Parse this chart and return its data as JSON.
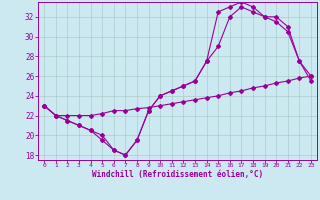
{
  "xlabel": "Windchill (Refroidissement éolien,°C)",
  "bg_color": "#cce8f0",
  "line_color": "#990099",
  "grid_color": "#aacccc",
  "xlim": [
    -0.5,
    23.5
  ],
  "ylim": [
    17.5,
    33.5
  ],
  "xticks": [
    0,
    1,
    2,
    3,
    4,
    5,
    6,
    7,
    8,
    9,
    10,
    11,
    12,
    13,
    14,
    15,
    16,
    17,
    18,
    19,
    20,
    21,
    22,
    23
  ],
  "yticks": [
    18,
    20,
    22,
    24,
    26,
    28,
    30,
    32
  ],
  "line1_x": [
    0,
    1,
    2,
    3,
    4,
    5,
    6,
    7,
    8,
    9,
    10,
    11,
    12,
    13,
    14,
    15,
    16,
    17,
    18,
    19,
    20,
    21,
    22,
    23
  ],
  "line1_y": [
    23.0,
    22.0,
    21.5,
    21.0,
    20.5,
    20.0,
    18.5,
    18.0,
    19.5,
    22.5,
    24.0,
    24.5,
    25.0,
    25.5,
    27.5,
    29.0,
    32.0,
    33.0,
    32.5,
    32.0,
    31.5,
    30.5,
    27.5,
    25.5
  ],
  "line2_x": [
    0,
    1,
    2,
    3,
    4,
    5,
    6,
    7,
    8,
    9,
    10,
    11,
    12,
    13,
    14,
    15,
    16,
    17,
    18,
    19,
    20,
    21,
    22,
    23
  ],
  "line2_y": [
    23.0,
    22.0,
    21.5,
    21.0,
    20.5,
    19.5,
    18.5,
    18.0,
    19.5,
    22.5,
    24.0,
    24.5,
    25.0,
    25.5,
    27.5,
    32.5,
    33.0,
    33.5,
    33.0,
    32.0,
    32.0,
    31.0,
    27.5,
    26.0
  ],
  "line3_x": [
    0,
    1,
    2,
    3,
    4,
    5,
    6,
    7,
    8,
    9,
    10,
    11,
    12,
    13,
    14,
    15,
    16,
    17,
    18,
    19,
    20,
    21,
    22,
    23
  ],
  "line3_y": [
    23.0,
    22.0,
    22.0,
    22.0,
    22.0,
    22.2,
    22.5,
    22.5,
    22.7,
    22.8,
    23.0,
    23.2,
    23.4,
    23.6,
    23.8,
    24.0,
    24.3,
    24.5,
    24.8,
    25.0,
    25.3,
    25.5,
    25.8,
    26.0
  ]
}
